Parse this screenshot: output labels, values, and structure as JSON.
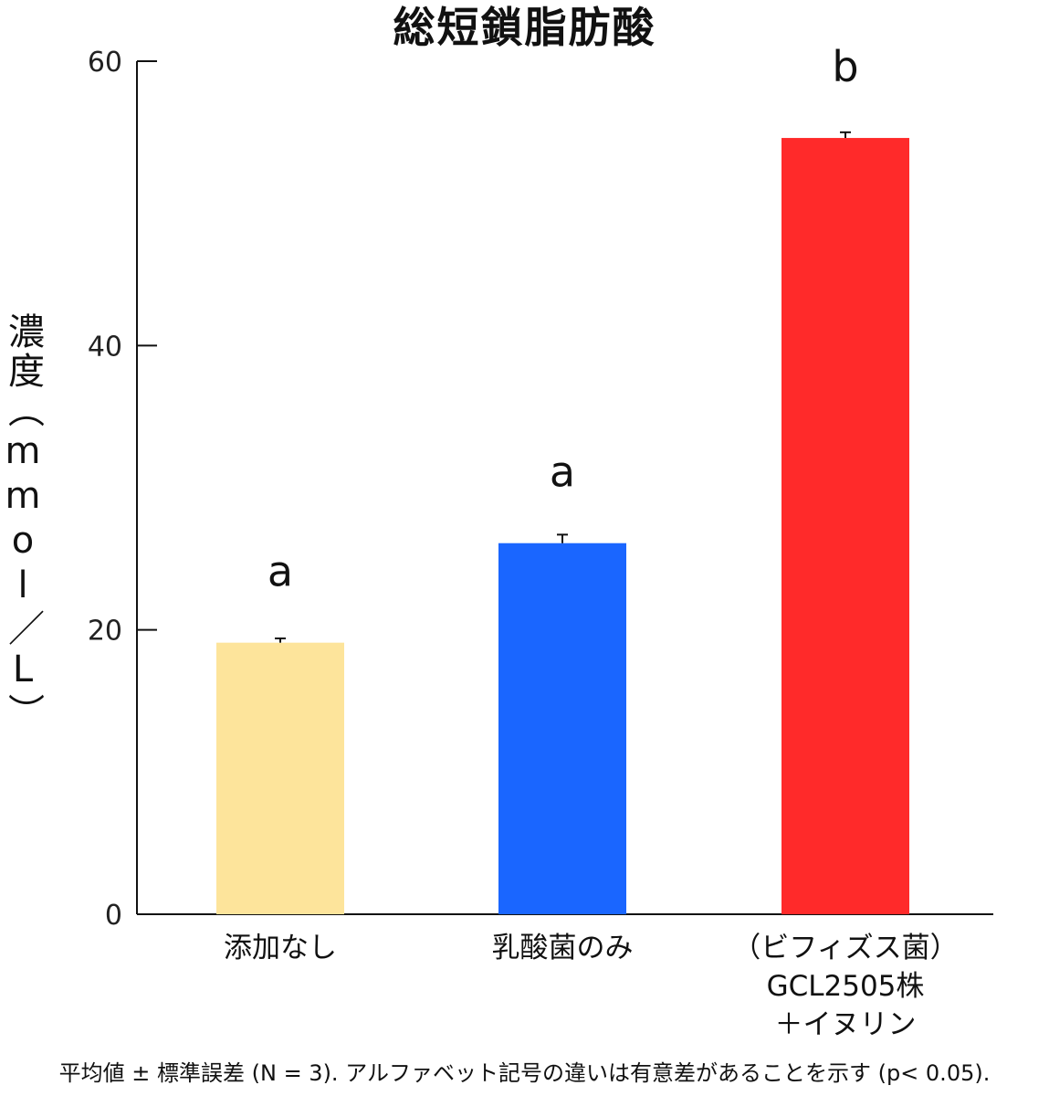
{
  "chart_data": {
    "type": "bar",
    "title": "総短鎖脂肪酸",
    "ylabel": "濃度（mmol／L）",
    "xlabel": "",
    "ylim": [
      0,
      60
    ],
    "yticks": [
      0,
      20,
      40,
      60
    ],
    "categories": [
      [
        "添加なし"
      ],
      [
        "乳酸菌のみ"
      ],
      [
        "（ビフィズス菌）",
        "GCL2505株",
        "＋イヌリン"
      ]
    ],
    "values": [
      19.1,
      26.1,
      54.6
    ],
    "errors": [
      0.3,
      0.6,
      0.4
    ],
    "significance_letters": [
      "a",
      "a",
      "b"
    ],
    "colors": [
      "#FDE49B",
      "#1A66FF",
      "#FF2A2A"
    ],
    "footnote": "平均値 ± 標準誤差 (N = 3). アルファベット記号の違いは有意差があることを示す (p< 0.05).",
    "grid": false,
    "legend": "none"
  }
}
